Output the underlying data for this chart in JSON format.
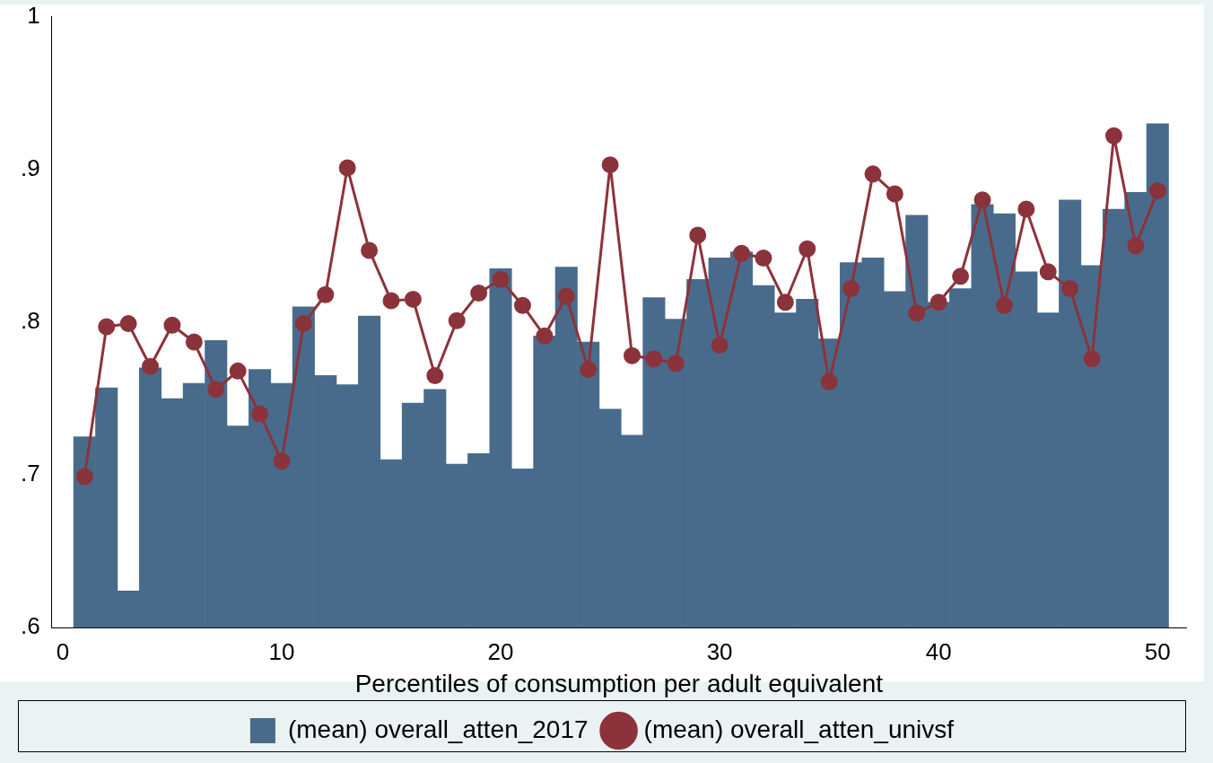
{
  "chart_data": {
    "type": "bar",
    "xlabel": "Percentiles of consumption per adult equivalent",
    "x": [
      1,
      2,
      3,
      4,
      5,
      6,
      7,
      8,
      9,
      10,
      11,
      12,
      13,
      14,
      15,
      16,
      17,
      18,
      19,
      20,
      21,
      22,
      23,
      24,
      25,
      26,
      27,
      28,
      29,
      30,
      31,
      32,
      33,
      34,
      35,
      36,
      37,
      38,
      39,
      40,
      41,
      42,
      43,
      44,
      45,
      46,
      47,
      48,
      49,
      50
    ],
    "series": [
      {
        "name": "(mean) overall_atten_2017",
        "color": "#486b8c",
        "values": [
          0.725,
          0.757,
          0.624,
          0.77,
          0.75,
          0.76,
          0.788,
          0.732,
          0.769,
          0.76,
          0.81,
          0.765,
          0.759,
          0.804,
          0.71,
          0.747,
          0.756,
          0.707,
          0.714,
          0.835,
          0.704,
          0.791,
          0.836,
          0.787,
          0.743,
          0.726,
          0.816,
          0.802,
          0.828,
          0.842,
          0.846,
          0.824,
          0.806,
          0.815,
          0.789,
          0.839,
          0.842,
          0.82,
          0.87,
          0.813,
          0.822,
          0.877,
          0.871,
          0.833,
          0.806,
          0.88,
          0.837,
          0.874,
          0.885,
          0.93
        ]
      },
      {
        "name": "(mean) overall_atten_univsf",
        "type": "line",
        "color": "#8b333b",
        "values": [
          0.699,
          0.797,
          0.799,
          0.771,
          0.798,
          0.787,
          0.756,
          0.768,
          0.74,
          0.709,
          0.799,
          0.818,
          0.901,
          0.847,
          0.814,
          0.815,
          0.765,
          0.801,
          0.819,
          0.828,
          0.811,
          0.791,
          0.817,
          0.769,
          0.903,
          0.778,
          0.776,
          0.773,
          0.857,
          0.785,
          0.845,
          0.842,
          0.813,
          0.848,
          0.761,
          0.822,
          0.897,
          0.884,
          0.806,
          0.813,
          0.83,
          0.88,
          0.811,
          0.874,
          0.833,
          0.822,
          0.776,
          0.922,
          0.85,
          0.886
        ]
      }
    ],
    "marker": "circle",
    "legend": "bottom",
    "xlim": [
      -0.5,
      51.3
    ],
    "xticks": [
      0,
      10,
      20,
      30,
      40,
      50
    ],
    "ylim": [
      0.6,
      1
    ],
    "yticks": [
      {
        "value": 0.6,
        "label": ".6"
      },
      {
        "value": 0.7,
        "label": ".7"
      },
      {
        "value": 0.8,
        "label": ".8"
      },
      {
        "value": 0.9,
        "label": ".9"
      },
      {
        "value": 1,
        "label": "1"
      }
    ]
  }
}
